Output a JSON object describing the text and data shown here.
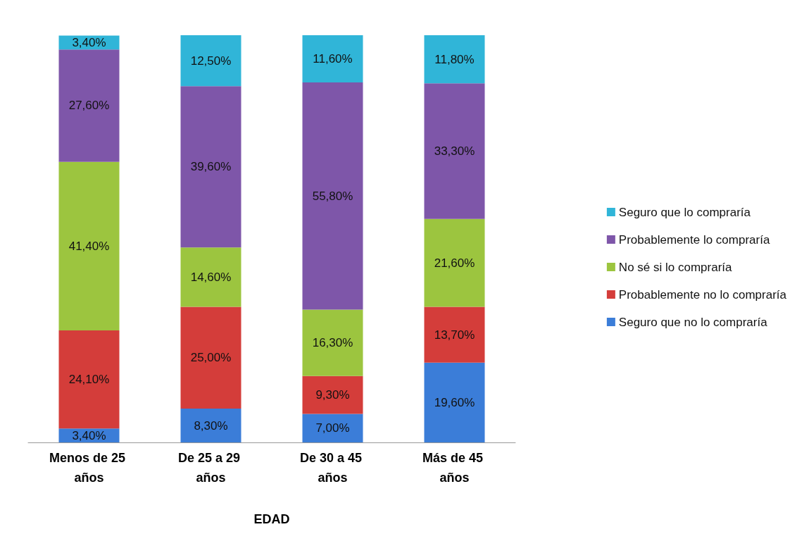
{
  "chart_data": {
    "type": "bar",
    "stacked": true,
    "xlabel": "EDAD",
    "legend": "right",
    "categories": [
      "Menos de 25 años",
      "De 25 a 29 años",
      "De 30 a 45 años",
      "Más de 45 años"
    ],
    "series": [
      {
        "name": "Seguro que no lo compraría",
        "color": "#3b7dd8",
        "values": [
          3.4,
          8.3,
          7.0,
          19.6
        ],
        "value_labels": [
          "3,40%",
          "8,30%",
          "7,00%",
          "19,60%"
        ]
      },
      {
        "name": "Probablemente no lo compraría",
        "color": "#d43d3a",
        "values": [
          24.1,
          25.0,
          9.3,
          13.7
        ],
        "value_labels": [
          "24,10%",
          "25,00%",
          "9,30%",
          "13,70%"
        ]
      },
      {
        "name": "No sé si lo compraría",
        "color": "#9cc53f",
        "values": [
          41.4,
          14.6,
          16.3,
          21.6
        ],
        "value_labels": [
          "41,40%",
          "14,60%",
          "16,30%",
          "21,60%"
        ]
      },
      {
        "name": "Probablemente lo compraría",
        "color": "#7e56a9",
        "values": [
          27.6,
          39.6,
          55.8,
          33.3
        ],
        "value_labels": [
          "27,60%",
          "39,60%",
          "55,80%",
          "33,30%"
        ]
      },
      {
        "name": "Seguro que lo compraría",
        "color": "#30b5d8",
        "values": [
          3.4,
          12.5,
          11.6,
          11.8
        ],
        "value_labels": [
          "3,40%",
          "12,50%",
          "11,60%",
          "11,80%"
        ]
      }
    ]
  }
}
